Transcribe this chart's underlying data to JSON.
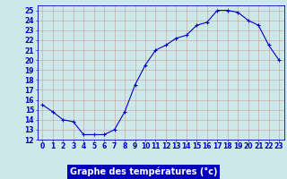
{
  "x": [
    0,
    1,
    2,
    3,
    4,
    5,
    6,
    7,
    8,
    9,
    10,
    11,
    12,
    13,
    14,
    15,
    16,
    17,
    18,
    19,
    20,
    21,
    22,
    23
  ],
  "y": [
    15.5,
    14.8,
    14.0,
    13.8,
    12.5,
    12.5,
    12.5,
    13.0,
    14.8,
    17.5,
    19.5,
    21.0,
    21.5,
    22.2,
    22.5,
    23.5,
    23.8,
    25.0,
    25.0,
    24.8,
    24.0,
    23.5,
    21.5,
    20.0
  ],
  "line_color": "#0000cc",
  "marker": "+",
  "marker_size": 3,
  "bg_color": "#cce8e8",
  "grid_color": "#b0c8c8",
  "xlabel": "Graphe des températures (°c)",
  "xlabel_bg": "#0000bb",
  "xlabel_color": "#ffffff",
  "xlim": [
    -0.5,
    23.5
  ],
  "ylim": [
    12,
    25.5
  ],
  "yticks": [
    12,
    13,
    14,
    15,
    16,
    17,
    18,
    19,
    20,
    21,
    22,
    23,
    24,
    25
  ],
  "xticks": [
    0,
    1,
    2,
    3,
    4,
    5,
    6,
    7,
    8,
    9,
    10,
    11,
    12,
    13,
    14,
    15,
    16,
    17,
    18,
    19,
    20,
    21,
    22,
    23
  ],
  "tick_fontsize": 5.5,
  "xlabel_fontsize": 7.0
}
